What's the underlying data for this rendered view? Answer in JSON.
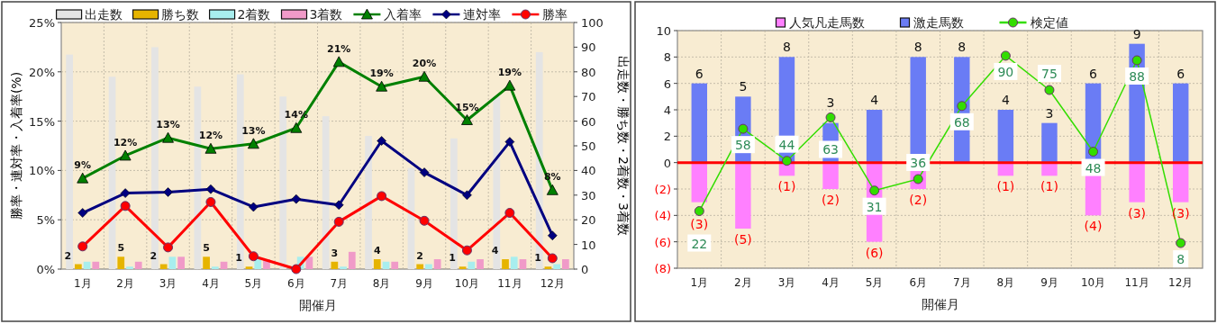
{
  "chart_data": [
    {
      "type": "bar",
      "categories": [
        "1月",
        "2月",
        "3月",
        "4月",
        "5月",
        "6月",
        "7月",
        "8月",
        "9月",
        "10月",
        "11月",
        "12月"
      ],
      "xlabel": "開催月",
      "ylabel": "勝率・連対率・入着率(%)",
      "y2label": "出走数・勝ち数・2着数・3着数",
      "ylim": [
        0,
        25
      ],
      "yticks": [
        {
          "value": 0,
          "label": "0%"
        },
        {
          "value": 5,
          "label": "5%"
        },
        {
          "value": 10,
          "label": "10%"
        },
        {
          "value": 15,
          "label": "15%"
        },
        {
          "value": 20,
          "label": "20%"
        },
        {
          "value": 25,
          "label": "25%"
        }
      ],
      "y2lim": [
        0,
        100
      ],
      "y2ticks": [
        0,
        10,
        20,
        30,
        40,
        50,
        60,
        70,
        80,
        90,
        100
      ],
      "grid": true,
      "legend": "top",
      "series": [
        {
          "name": "出走数",
          "axis": "y2",
          "color": "#e4e4e4",
          "values": [
            87,
            78,
            90,
            74,
            79,
            70,
            62,
            54,
            41,
            53,
            70,
            88
          ]
        },
        {
          "name": "勝ち数",
          "axis": "y2",
          "color": "#e6b400",
          "values": [
            2,
            5,
            2,
            5,
            1,
            0,
            3,
            4,
            2,
            1,
            4,
            1
          ],
          "value_labels": [
            "2",
            "5",
            "2",
            "5",
            "1",
            null,
            "3",
            "4",
            "2",
            "1",
            "4",
            "1"
          ]
        },
        {
          "name": "2着数",
          "axis": "y2",
          "color": "#a8eeee",
          "values": [
            3,
            1,
            5,
            1,
            4,
            5,
            1,
            3,
            2,
            3,
            5,
            2
          ]
        },
        {
          "name": "3着数",
          "axis": "y2",
          "color": "#f09ac8",
          "values": [
            3,
            3,
            5,
            3,
            4,
            5,
            7,
            3,
            4,
            4,
            4,
            4
          ]
        },
        {
          "name": "入着率",
          "type": "line",
          "marker": "triangle",
          "color": "#008000",
          "values": [
            9.2,
            11.5,
            13.3,
            12.2,
            12.7,
            14.3,
            21.0,
            18.5,
            19.5,
            15.1,
            18.6,
            8.0
          ],
          "value_labels": [
            "9%",
            "12%",
            "13%",
            "12%",
            "13%",
            "14%",
            "21%",
            "19%",
            "20%",
            "15%",
            "19%",
            "8%"
          ]
        },
        {
          "name": "連対率",
          "type": "line",
          "marker": "diamond",
          "color": "#000080",
          "values": [
            5.7,
            7.7,
            7.8,
            8.1,
            6.3,
            7.1,
            6.5,
            13.0,
            9.8,
            7.5,
            12.9,
            3.4
          ]
        },
        {
          "name": "勝率",
          "type": "line",
          "marker": "circle",
          "color": "#ff0000",
          "values": [
            2.3,
            6.4,
            2.2,
            6.8,
            1.3,
            0,
            4.8,
            7.4,
            4.9,
            1.9,
            5.7,
            1.1
          ]
        }
      ]
    },
    {
      "type": "bar",
      "categories": [
        "1月",
        "2月",
        "3月",
        "4月",
        "5月",
        "6月",
        "7月",
        "8月",
        "9月",
        "10月",
        "11月",
        "12月"
      ],
      "xlabel": "開催月",
      "stacked": true,
      "ylim": [
        -8,
        10
      ],
      "yticks": [
        {
          "value": -8,
          "label": "(8)"
        },
        {
          "value": -6,
          "label": "(6)"
        },
        {
          "value": -4,
          "label": "(4)"
        },
        {
          "value": -2,
          "label": "(2)"
        },
        0,
        2,
        4,
        6,
        8,
        10
      ],
      "y2lim": [
        -3,
        101
      ],
      "grid": true,
      "legend": "top",
      "ref_lines": [
        {
          "axis": "y",
          "value": 0,
          "color": "#ff0000"
        }
      ],
      "series": [
        {
          "name": "人気凡走馬数",
          "color": "#ff80ff",
          "values": [
            -3,
            -5,
            -1,
            -2,
            -6,
            -2,
            0,
            -1,
            -1,
            -4,
            -3,
            -3
          ],
          "value_labels": [
            "(3)",
            "(5)",
            "(1)",
            "(2)",
            "(6)",
            "(2)",
            null,
            "(1)",
            "(1)",
            "(4)",
            "(3)",
            "(3)"
          ]
        },
        {
          "name": "激走馬数",
          "color": "#6a7cf5",
          "values": [
            6,
            5,
            8,
            3,
            4,
            8,
            8,
            4,
            3,
            6,
            9,
            6
          ],
          "value_labels": [
            "6",
            "5",
            "8",
            "3",
            "4",
            "8",
            "8",
            "4",
            "3",
            "6",
            "9",
            "6"
          ]
        },
        {
          "name": "検定値",
          "type": "line",
          "axis": "y2",
          "marker": "circle",
          "color": "#33dd00",
          "values": [
            22,
            58,
            44,
            63,
            31,
            36,
            68,
            90,
            75,
            48,
            88,
            8
          ],
          "value_labels": [
            "22",
            "58",
            "44",
            "63",
            "31",
            "36",
            "68",
            "90",
            "75",
            "48",
            "88",
            "8"
          ]
        }
      ]
    }
  ]
}
